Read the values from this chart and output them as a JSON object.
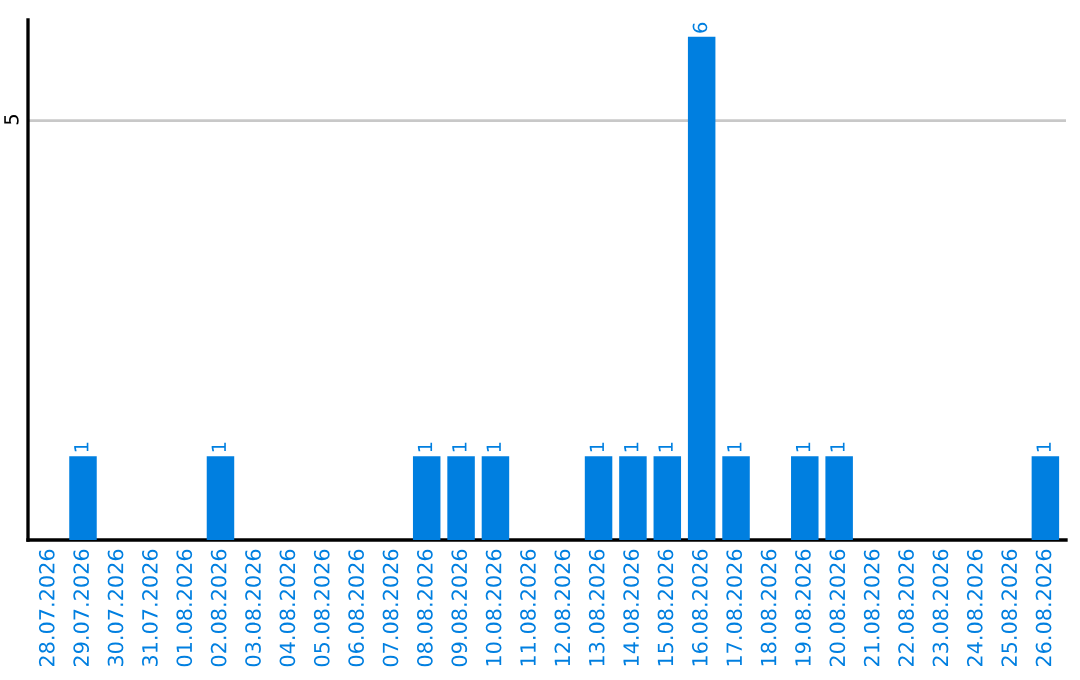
{
  "chart_data": {
    "type": "bar",
    "categories": [
      "28.07.2026",
      "29.07.2026",
      "30.07.2026",
      "31.07.2026",
      "01.08.2026",
      "02.08.2026",
      "03.08.2026",
      "04.08.2026",
      "05.08.2026",
      "06.08.2026",
      "07.08.2026",
      "08.08.2026",
      "09.08.2026",
      "10.08.2026",
      "11.08.2026",
      "12.08.2026",
      "13.08.2026",
      "14.08.2026",
      "15.08.2026",
      "16.08.2026",
      "17.08.2026",
      "18.08.2026",
      "19.08.2026",
      "20.08.2026",
      "21.08.2026",
      "22.08.2026",
      "23.08.2026",
      "24.08.2026",
      "25.08.2026",
      "26.08.2026"
    ],
    "values": [
      0,
      1,
      0,
      0,
      0,
      1,
      0,
      0,
      0,
      0,
      0,
      1,
      1,
      1,
      0,
      0,
      1,
      1,
      1,
      6,
      1,
      0,
      1,
      1,
      0,
      0,
      0,
      0,
      0,
      1
    ],
    "value_labels": [
      null,
      "1",
      null,
      null,
      null,
      "1",
      null,
      null,
      null,
      null,
      null,
      "1",
      "1",
      "1",
      null,
      null,
      "1",
      "1",
      "1",
      "6",
      "1",
      null,
      "1",
      "1",
      null,
      null,
      null,
      null,
      null,
      "1"
    ],
    "color": "#007fe0",
    "ylim": [
      0,
      6.2
    ],
    "yticks": [
      5
    ],
    "grid": "y",
    "legend": false
  }
}
